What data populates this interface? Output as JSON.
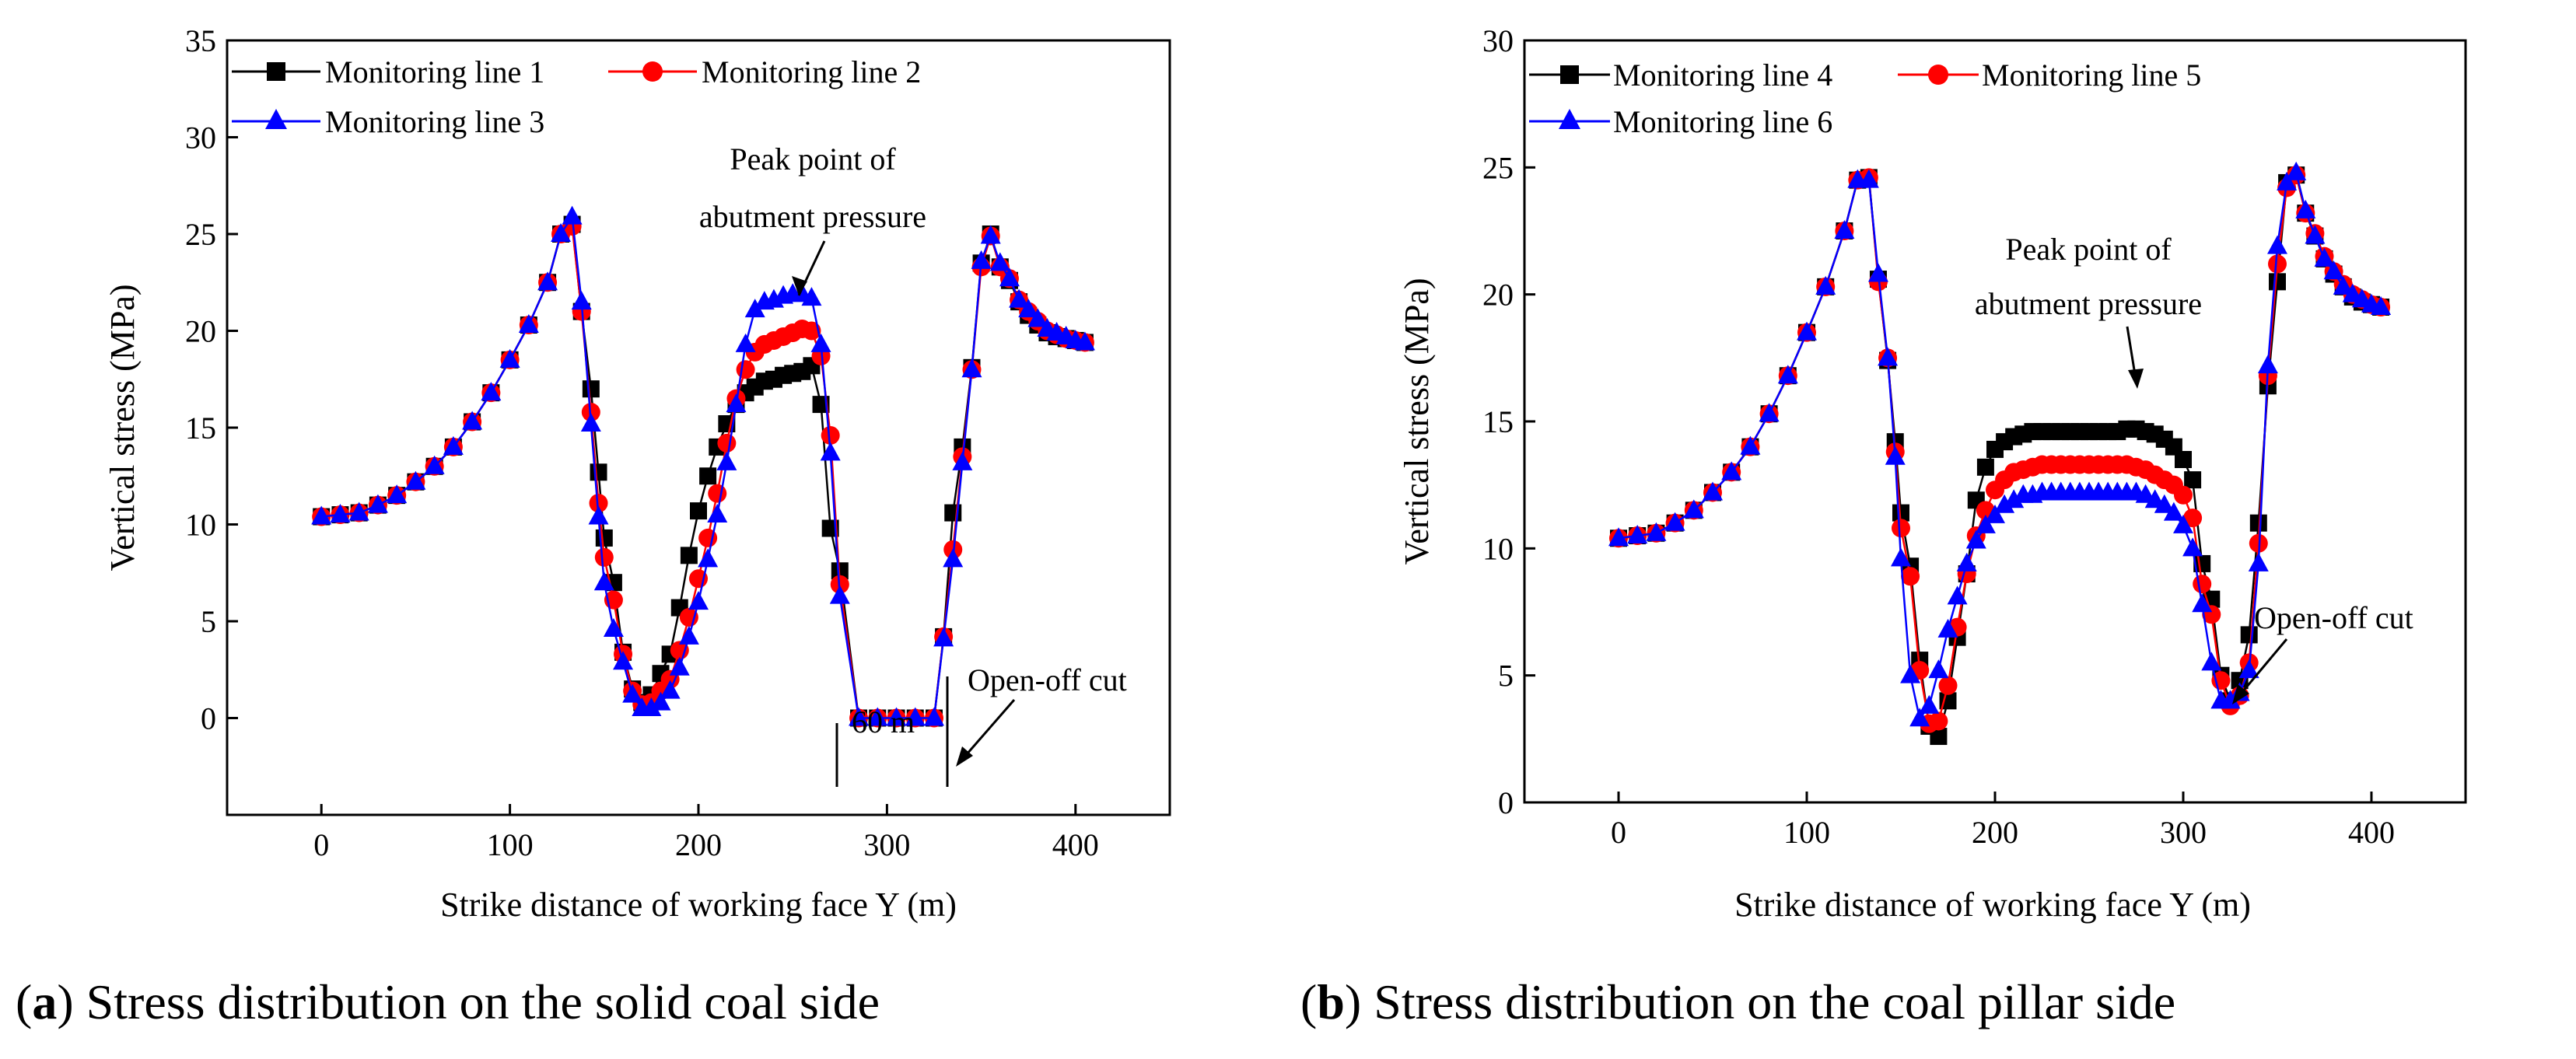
{
  "chart_data": [
    {
      "type": "line",
      "panel": "a",
      "caption_letter": "a",
      "caption_text": "Stress distribution on the solid coal side",
      "xlabel": "Strike distance of working face Y (m)",
      "ylabel": "Vertical stress (MPa)",
      "xlim": [
        -50,
        450
      ],
      "ylim": [
        -5,
        35
      ],
      "xticks": [
        0,
        100,
        200,
        300,
        400
      ],
      "yticks": [
        0,
        5,
        10,
        15,
        20,
        25,
        30,
        35
      ],
      "grid": false,
      "legend_position": "top-left",
      "series": [
        {
          "name": "Monitoring line 1",
          "color": "#000000",
          "marker": "square",
          "x": [
            0,
            10,
            20,
            30,
            40,
            50,
            60,
            70,
            80,
            90,
            100,
            110,
            120,
            127,
            133,
            138,
            143,
            147,
            150,
            155,
            160,
            165,
            170,
            175,
            180,
            185,
            190,
            195,
            200,
            205,
            210,
            215,
            220,
            225,
            230,
            235,
            240,
            245,
            250,
            255,
            260,
            265,
            270,
            275,
            285,
            295,
            305,
            315,
            325,
            330,
            335,
            340,
            345,
            350,
            355,
            360,
            365,
            370,
            375,
            380,
            385,
            390,
            395,
            400,
            405
          ],
          "y": [
            10.4,
            10.5,
            10.6,
            11.0,
            11.5,
            12.2,
            13.0,
            14.0,
            15.3,
            16.8,
            18.5,
            20.3,
            22.5,
            25.0,
            25.5,
            21.0,
            17.0,
            12.7,
            9.3,
            7.0,
            3.4,
            1.5,
            0.8,
            1.2,
            2.3,
            3.3,
            5.7,
            8.4,
            10.7,
            12.5,
            14.0,
            15.2,
            16.2,
            16.8,
            17.1,
            17.4,
            17.5,
            17.7,
            17.8,
            17.9,
            18.2,
            16.2,
            9.8,
            7.6,
            0,
            0,
            0,
            0,
            0,
            4.2,
            10.6,
            14.0,
            18.1,
            23.5,
            25.0,
            23.3,
            22.6,
            21.5,
            20.8,
            20.3,
            19.9,
            19.7,
            19.6,
            19.5,
            19.4
          ]
        },
        {
          "name": "Monitoring line 2",
          "color": "#ff0000",
          "marker": "circle",
          "x": [
            0,
            10,
            20,
            30,
            40,
            50,
            60,
            70,
            80,
            90,
            100,
            110,
            120,
            127,
            133,
            138,
            143,
            147,
            150,
            155,
            160,
            165,
            170,
            175,
            180,
            185,
            190,
            195,
            200,
            205,
            210,
            215,
            220,
            225,
            230,
            235,
            240,
            245,
            250,
            255,
            260,
            265,
            270,
            275,
            285,
            295,
            305,
            315,
            325,
            330,
            335,
            340,
            345,
            350,
            355,
            360,
            365,
            370,
            375,
            380,
            385,
            390,
            395,
            400,
            405
          ],
          "y": [
            10.4,
            10.5,
            10.6,
            11.0,
            11.5,
            12.2,
            13.0,
            14.0,
            15.3,
            16.8,
            18.5,
            20.3,
            22.5,
            25.0,
            25.4,
            21.0,
            15.8,
            11.1,
            8.3,
            6.1,
            3.3,
            1.4,
            0.7,
            0.8,
            1.4,
            2.0,
            3.5,
            5.2,
            7.2,
            9.3,
            11.6,
            14.2,
            16.5,
            18.0,
            18.9,
            19.3,
            19.5,
            19.7,
            19.9,
            20.1,
            20.0,
            18.7,
            14.6,
            6.9,
            0,
            0,
            0,
            0,
            0,
            4.2,
            8.7,
            13.5,
            18.0,
            23.3,
            24.9,
            23.3,
            22.7,
            21.6,
            21.0,
            20.5,
            20.0,
            19.8,
            19.6,
            19.5,
            19.4
          ]
        },
        {
          "name": "Monitoring line 3",
          "color": "#0000ff",
          "marker": "triangle",
          "x": [
            0,
            10,
            20,
            30,
            40,
            50,
            60,
            70,
            80,
            90,
            100,
            110,
            120,
            127,
            133,
            138,
            143,
            147,
            150,
            155,
            160,
            165,
            170,
            175,
            180,
            185,
            190,
            195,
            200,
            205,
            210,
            215,
            220,
            225,
            230,
            235,
            240,
            245,
            250,
            255,
            260,
            265,
            270,
            275,
            285,
            295,
            305,
            315,
            325,
            330,
            335,
            340,
            345,
            350,
            355,
            360,
            365,
            370,
            375,
            380,
            385,
            390,
            395,
            400,
            405
          ],
          "y": [
            10.4,
            10.5,
            10.6,
            11.0,
            11.5,
            12.2,
            13.0,
            14.0,
            15.3,
            16.8,
            18.5,
            20.3,
            22.5,
            25.0,
            25.9,
            21.5,
            15.2,
            10.4,
            7.0,
            4.6,
            2.9,
            1.2,
            0.5,
            0.5,
            0.8,
            1.4,
            2.6,
            4.2,
            6.0,
            8.2,
            10.5,
            13.2,
            16.2,
            19.3,
            21.1,
            21.5,
            21.6,
            21.8,
            21.9,
            21.9,
            21.7,
            19.3,
            13.7,
            6.3,
            0,
            0,
            0,
            0,
            0,
            4.1,
            8.2,
            13.2,
            18.0,
            23.6,
            24.9,
            23.5,
            22.7,
            21.6,
            21.1,
            20.6,
            20.1,
            19.9,
            19.7,
            19.5,
            19.4
          ]
        }
      ],
      "annotations": {
        "peak_line1": "Peak point of",
        "peak_line2": "abutment pressure",
        "gap_label": "60 m",
        "cut_label": "Open-off cut"
      }
    },
    {
      "type": "line",
      "panel": "b",
      "caption_letter": "b",
      "caption_text": "Stress distribution on the coal pillar side",
      "xlabel": "Strike distance of working face Y (m)",
      "ylabel": "Vertical stress (MPa)",
      "xlim": [
        -50,
        450
      ],
      "ylim": [
        0,
        30
      ],
      "xticks": [
        0,
        100,
        200,
        300,
        400
      ],
      "yticks": [
        0,
        5,
        10,
        15,
        20,
        25,
        30
      ],
      "grid": false,
      "legend_position": "top-left",
      "series": [
        {
          "name": "Monitoring line 4",
          "color": "#000000",
          "marker": "square",
          "x": [
            0,
            10,
            20,
            30,
            40,
            50,
            60,
            70,
            80,
            90,
            100,
            110,
            120,
            127,
            133,
            138,
            143,
            147,
            150,
            155,
            160,
            165,
            170,
            175,
            180,
            185,
            190,
            195,
            200,
            205,
            210,
            215,
            220,
            225,
            230,
            235,
            240,
            245,
            250,
            255,
            260,
            265,
            270,
            275,
            280,
            285,
            290,
            295,
            300,
            305,
            310,
            315,
            320,
            325,
            330,
            335,
            340,
            345,
            350,
            355,
            360,
            365,
            370,
            375,
            380,
            385,
            390,
            395,
            400,
            405
          ],
          "y": [
            10.4,
            10.5,
            10.6,
            11.0,
            11.5,
            12.2,
            13.0,
            14.0,
            15.3,
            16.8,
            18.5,
            20.3,
            22.5,
            24.5,
            24.6,
            20.6,
            17.4,
            14.2,
            11.4,
            9.3,
            5.6,
            3.0,
            2.6,
            4.0,
            6.5,
            9.0,
            11.9,
            13.2,
            13.9,
            14.2,
            14.4,
            14.5,
            14.6,
            14.6,
            14.6,
            14.6,
            14.6,
            14.6,
            14.6,
            14.6,
            14.6,
            14.6,
            14.7,
            14.7,
            14.6,
            14.5,
            14.3,
            14.0,
            13.5,
            12.7,
            9.4,
            8.0,
            5.0,
            4.0,
            4.8,
            6.6,
            11.0,
            16.4,
            20.5,
            24.4,
            24.7,
            23.2,
            22.3,
            21.4,
            20.8,
            20.3,
            19.9,
            19.7,
            19.6,
            19.5
          ]
        },
        {
          "name": "Monitoring line 5",
          "color": "#ff0000",
          "marker": "circle",
          "x": [
            0,
            10,
            20,
            30,
            40,
            50,
            60,
            70,
            80,
            90,
            100,
            110,
            120,
            127,
            133,
            138,
            143,
            147,
            150,
            155,
            160,
            165,
            170,
            175,
            180,
            185,
            190,
            195,
            200,
            205,
            210,
            215,
            220,
            225,
            230,
            235,
            240,
            245,
            250,
            255,
            260,
            265,
            270,
            275,
            280,
            285,
            290,
            295,
            300,
            305,
            310,
            315,
            320,
            325,
            330,
            335,
            340,
            345,
            350,
            355,
            360,
            365,
            370,
            375,
            380,
            385,
            390,
            395,
            400,
            405
          ],
          "y": [
            10.4,
            10.5,
            10.6,
            11.0,
            11.5,
            12.2,
            13.0,
            14.0,
            15.3,
            16.8,
            18.5,
            20.3,
            22.5,
            24.5,
            24.6,
            20.5,
            17.5,
            13.8,
            10.8,
            8.9,
            5.2,
            3.1,
            3.2,
            4.6,
            6.9,
            9.0,
            10.5,
            11.5,
            12.3,
            12.7,
            13.0,
            13.1,
            13.2,
            13.3,
            13.3,
            13.3,
            13.3,
            13.3,
            13.3,
            13.3,
            13.3,
            13.3,
            13.3,
            13.2,
            13.1,
            12.9,
            12.7,
            12.5,
            12.1,
            11.2,
            8.6,
            7.4,
            4.8,
            3.8,
            4.2,
            5.5,
            10.2,
            16.8,
            21.2,
            24.2,
            24.7,
            23.2,
            22.4,
            21.5,
            20.9,
            20.4,
            20.0,
            19.8,
            19.6,
            19.5
          ]
        },
        {
          "name": "Monitoring line 6",
          "color": "#0000ff",
          "marker": "triangle",
          "x": [
            0,
            10,
            20,
            30,
            40,
            50,
            60,
            70,
            80,
            90,
            100,
            110,
            120,
            127,
            133,
            138,
            143,
            147,
            150,
            155,
            160,
            165,
            170,
            175,
            180,
            185,
            190,
            195,
            200,
            205,
            210,
            215,
            220,
            225,
            230,
            235,
            240,
            245,
            250,
            255,
            260,
            265,
            270,
            275,
            280,
            285,
            290,
            295,
            300,
            305,
            310,
            315,
            320,
            325,
            330,
            335,
            340,
            345,
            350,
            355,
            360,
            365,
            370,
            375,
            380,
            385,
            390,
            395,
            400,
            405
          ],
          "y": [
            10.4,
            10.5,
            10.6,
            11.0,
            11.5,
            12.2,
            13.0,
            14.0,
            15.3,
            16.8,
            18.5,
            20.3,
            22.5,
            24.5,
            24.5,
            20.8,
            17.5,
            13.6,
            9.6,
            5.0,
            3.3,
            3.8,
            5.2,
            6.8,
            8.1,
            9.4,
            10.3,
            10.9,
            11.3,
            11.7,
            11.9,
            12.1,
            12.1,
            12.2,
            12.2,
            12.2,
            12.2,
            12.2,
            12.2,
            12.2,
            12.2,
            12.2,
            12.2,
            12.2,
            12.1,
            11.9,
            11.7,
            11.4,
            10.9,
            10.0,
            7.8,
            5.5,
            4.0,
            4.0,
            4.3,
            5.2,
            9.4,
            17.2,
            21.9,
            24.4,
            24.8,
            23.3,
            22.3,
            21.4,
            20.9,
            20.3,
            20.0,
            19.8,
            19.6,
            19.5
          ]
        }
      ],
      "annotations": {
        "peak_line1": "Peak point of",
        "peak_line2": "abutment pressure",
        "cut_label": "Open-off cut"
      }
    }
  ]
}
